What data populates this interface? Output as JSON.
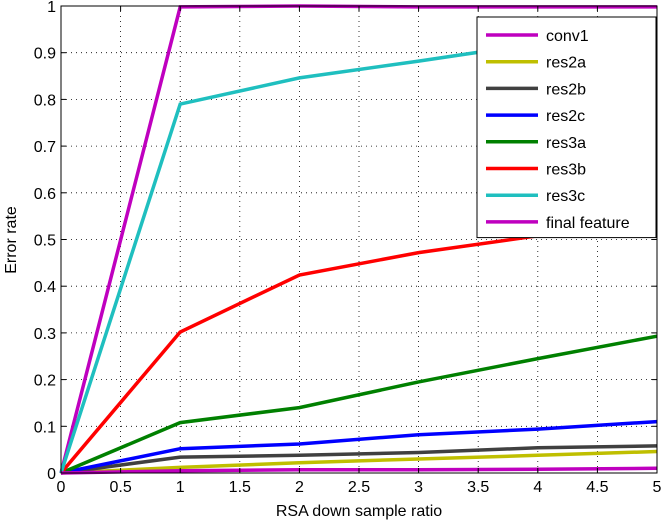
{
  "chart_data": {
    "type": "line",
    "title": "",
    "xlabel": "RSA down sample ratio",
    "ylabel": "Error rate",
    "xlim": [
      0,
      5
    ],
    "ylim": [
      0,
      1
    ],
    "xticks": [
      0,
      0.5,
      1,
      1.5,
      2,
      2.5,
      3,
      3.5,
      4,
      4.5,
      5
    ],
    "xtick_labels": [
      "0",
      "0.5",
      "1",
      "1.5",
      "2",
      "2.5",
      "3",
      "3.5",
      "4",
      "4.5",
      "5"
    ],
    "yticks": [
      0,
      0.1,
      0.2,
      0.3,
      0.4,
      0.5,
      0.6,
      0.7,
      0.8,
      0.9,
      1
    ],
    "ytick_labels": [
      "0",
      "0.1",
      "0.2",
      "0.3",
      "0.4",
      "0.5",
      "0.6",
      "0.7",
      "0.8",
      "0.9",
      "1"
    ],
    "grid": true,
    "grid_style": "dotted",
    "legend_position": "top-right",
    "x": [
      0,
      1,
      2,
      3,
      4,
      5
    ],
    "series": [
      {
        "name": "conv1",
        "color": "#bf00bf",
        "values": [
          0,
          0.998,
          1.0,
          0.998,
          0.998,
          0.998
        ]
      },
      {
        "name": "res2a",
        "color": "#bfbf00",
        "values": [
          0,
          0.012,
          0.022,
          0.03,
          0.038,
          0.046
        ]
      },
      {
        "name": "res2b",
        "color": "#404040",
        "values": [
          0,
          0.034,
          0.038,
          0.044,
          0.054,
          0.058
        ]
      },
      {
        "name": "res2c",
        "color": "#0000ff",
        "values": [
          0,
          0.052,
          0.062,
          0.082,
          0.094,
          0.11
        ]
      },
      {
        "name": "res3a",
        "color": "#008000",
        "values": [
          0,
          0.108,
          0.14,
          0.195,
          0.245,
          0.293
        ]
      },
      {
        "name": "res3b",
        "color": "#ff0000",
        "values": [
          0,
          0.302,
          0.424,
          0.472,
          0.508,
          0.542
        ]
      },
      {
        "name": "res3c",
        "color": "#1fbfbf",
        "values": [
          0,
          0.79,
          0.846,
          0.882,
          0.92,
          0.973
        ]
      },
      {
        "name": "final feature",
        "color": "#bf00bf",
        "values": [
          0,
          0.005,
          0.007,
          0.007,
          0.008,
          0.01
        ]
      }
    ]
  }
}
